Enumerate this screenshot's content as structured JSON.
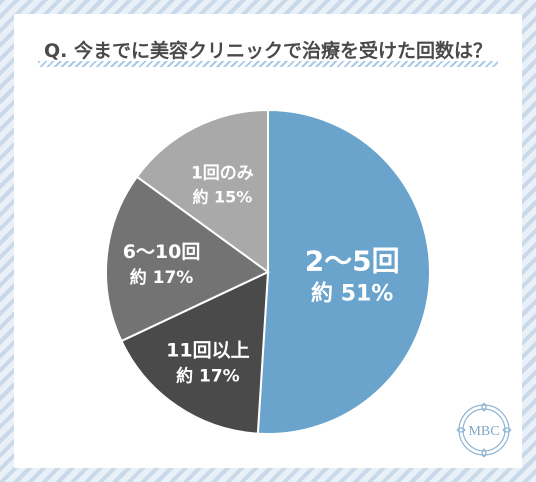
{
  "title": "Q. 今までに美容クリニックで治療を受けた回数は？",
  "logo": {
    "text": "MBC",
    "color": "#7fa9c8"
  },
  "chart_data": {
    "type": "pie",
    "title": "Q. 今までに美容クリニックで治療を受けた回数は？",
    "start_angle": "12 o'clock, clockwise",
    "slices": [
      {
        "label": "2～5回",
        "value_label": "約 51%",
        "value": 51,
        "color": "#6aa3cc"
      },
      {
        "label": "11回以上",
        "value_label": "約 17%",
        "value": 17,
        "color": "#4a4a4a"
      },
      {
        "label": "6～10回",
        "value_label": "約 17%",
        "value": 17,
        "color": "#737373"
      },
      {
        "label": "1回のみ",
        "value_label": "約 15%",
        "value": 15,
        "color": "#a9a9a9"
      }
    ]
  }
}
